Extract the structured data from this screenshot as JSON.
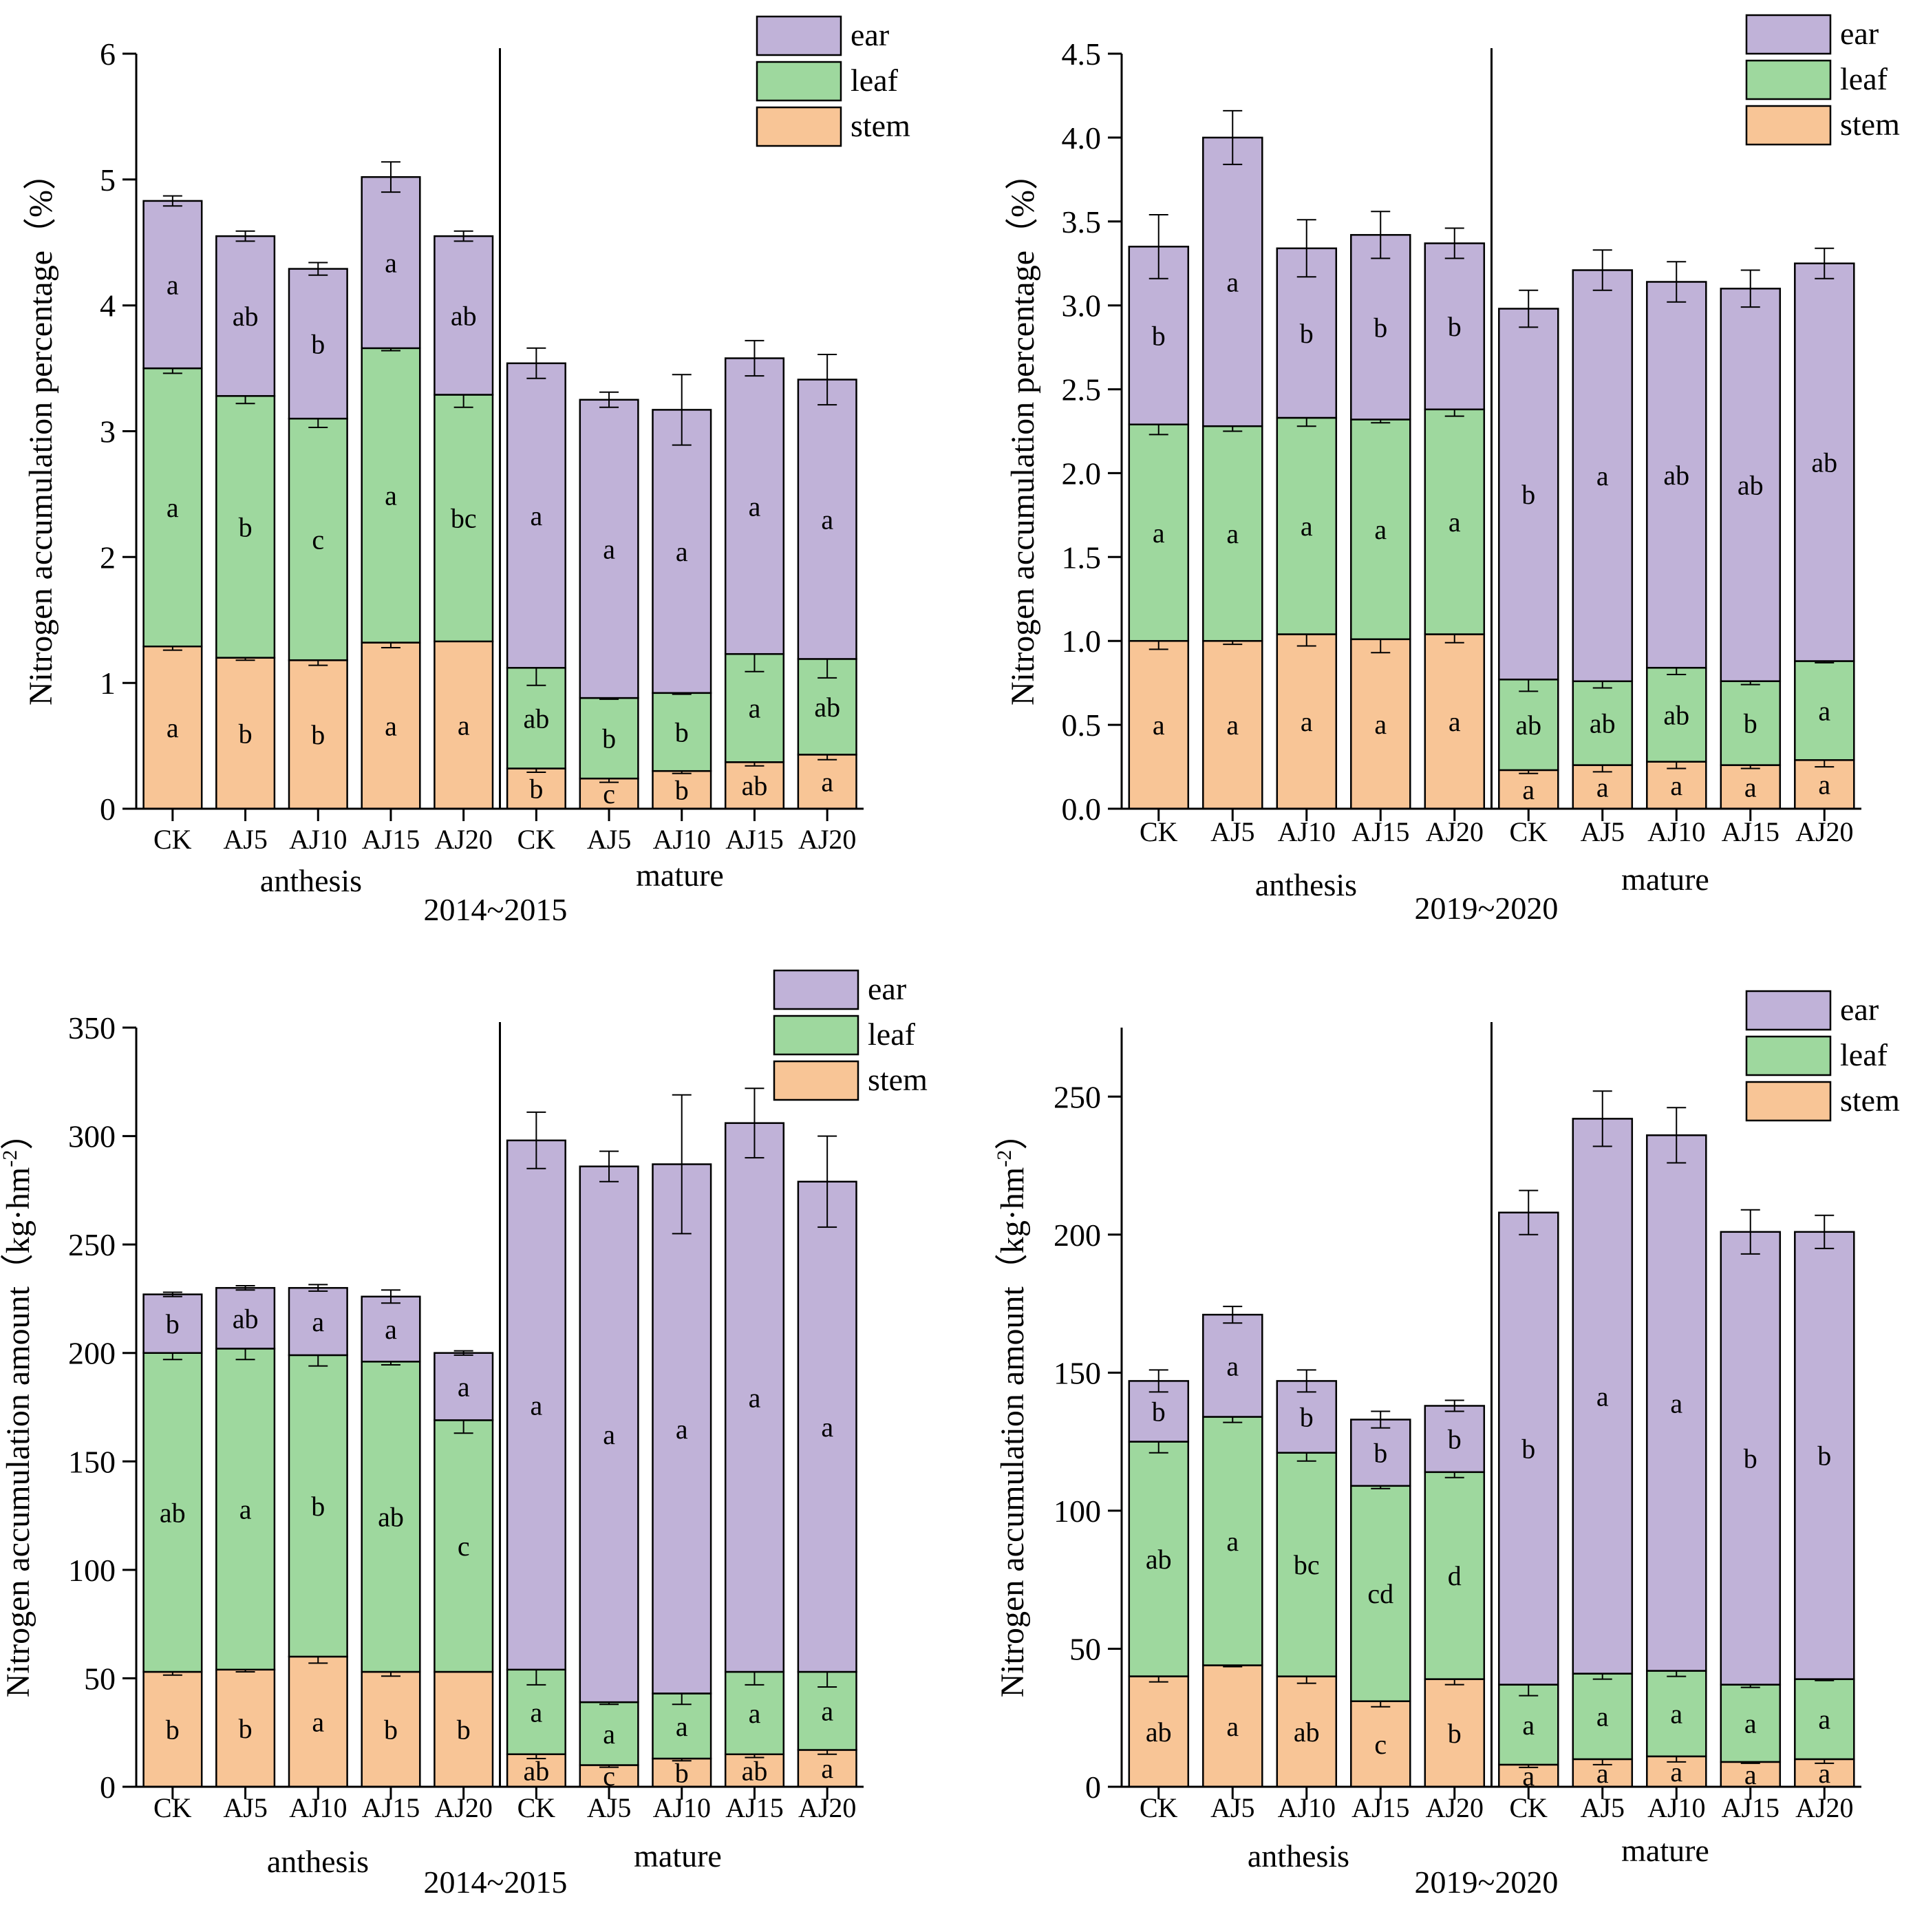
{
  "colors": {
    "ear": "#C0B2D8",
    "leaf": "#9ED89E",
    "stem": "#F8C596",
    "axis": "#000000"
  },
  "chart_data": [
    {
      "type": "bar",
      "stacked": true,
      "title": "",
      "ylabel": "Nitrogen accumulation percentage（%）",
      "ylim": [
        0,
        6
      ],
      "yticks": [
        0,
        1,
        2,
        3,
        4,
        5,
        6
      ],
      "ytick_labels": [
        "0",
        "1",
        "2",
        "3",
        "4",
        "5",
        "6"
      ],
      "categories": [
        "CK",
        "AJ5",
        "AJ10",
        "AJ15",
        "AJ20",
        "CK",
        "AJ5",
        "AJ10",
        "AJ15",
        "AJ20"
      ],
      "groups": [
        "anthesis",
        "mature"
      ],
      "period": "2014~2015",
      "legend": [
        "ear",
        "leaf",
        "stem"
      ],
      "legend_position": "top-right",
      "series": [
        {
          "name": "stem",
          "values": [
            1.29,
            1.2,
            1.18,
            1.32,
            1.33,
            0.32,
            0.24,
            0.3,
            0.37,
            0.43
          ],
          "err": [
            0.03,
            0.02,
            0.04,
            0.04,
            0.0,
            0.03,
            0.03,
            0.02,
            0.03,
            0.04
          ],
          "labels": [
            "a",
            "b",
            "b",
            "a",
            "a",
            "b",
            "c",
            "b",
            "ab",
            "a"
          ]
        },
        {
          "name": "leaf",
          "values": [
            2.21,
            2.08,
            1.92,
            2.34,
            1.96,
            0.8,
            0.64,
            0.62,
            0.86,
            0.76
          ],
          "err": [
            0.04,
            0.06,
            0.07,
            0.02,
            0.1,
            0.14,
            0.01,
            0.01,
            0.14,
            0.15
          ],
          "labels": [
            "a",
            "b",
            "c",
            "a",
            "bc",
            "ab",
            "b",
            "b",
            "a",
            "ab"
          ]
        },
        {
          "name": "ear",
          "values": [
            1.33,
            1.27,
            1.19,
            1.36,
            1.26,
            2.42,
            2.37,
            2.25,
            2.35,
            2.22
          ],
          "err": [
            0.04,
            0.04,
            0.05,
            0.12,
            0.04,
            0.12,
            0.06,
            0.28,
            0.14,
            0.2
          ],
          "labels": [
            "a",
            "ab",
            "b",
            "a",
            "ab",
            "a",
            "a",
            "a",
            "a",
            "a"
          ]
        }
      ]
    },
    {
      "type": "bar",
      "stacked": true,
      "title": "",
      "ylabel": "Nitrogen accumulation percentage（%）",
      "ylim": [
        0,
        4.5
      ],
      "yticks": [
        0,
        0.5,
        1.0,
        1.5,
        2.0,
        2.5,
        3.0,
        3.5,
        4.0,
        4.5
      ],
      "ytick_labels": [
        "0.0",
        "0.5",
        "1.0",
        "1.5",
        "2.0",
        "2.5",
        "3.0",
        "3.5",
        "4.0",
        "4.5"
      ],
      "categories": [
        "CK",
        "AJ5",
        "AJ10",
        "AJ15",
        "AJ20",
        "CK",
        "AJ5",
        "AJ10",
        "AJ15",
        "AJ20"
      ],
      "groups": [
        "anthesis",
        "mature"
      ],
      "period": "2019~2020",
      "legend": [
        "ear",
        "leaf",
        "stem"
      ],
      "legend_position": "top-right",
      "series": [
        {
          "name": "stem",
          "values": [
            1.0,
            1.0,
            1.04,
            1.01,
            1.04,
            0.23,
            0.26,
            0.28,
            0.26,
            0.29
          ],
          "err": [
            0.05,
            0.02,
            0.07,
            0.08,
            0.05,
            0.02,
            0.04,
            0.04,
            0.02,
            0.04
          ],
          "labels": [
            "a",
            "a",
            "a",
            "a",
            "a",
            "a",
            "a",
            "a",
            "a",
            "a"
          ]
        },
        {
          "name": "leaf",
          "values": [
            1.29,
            1.28,
            1.29,
            1.31,
            1.34,
            0.54,
            0.5,
            0.56,
            0.5,
            0.59
          ],
          "err": [
            0.06,
            0.03,
            0.05,
            0.02,
            0.04,
            0.07,
            0.04,
            0.04,
            0.02,
            0.01
          ],
          "labels": [
            "a",
            "a",
            "a",
            "a",
            "a",
            "ab",
            "ab",
            "ab",
            "b",
            "a"
          ]
        },
        {
          "name": "ear",
          "values": [
            1.06,
            1.72,
            1.01,
            1.1,
            0.99,
            2.21,
            2.45,
            2.3,
            2.34,
            2.37
          ],
          "err": [
            0.19,
            0.16,
            0.17,
            0.14,
            0.09,
            0.11,
            0.12,
            0.12,
            0.11,
            0.09
          ],
          "labels": [
            "b",
            "a",
            "b",
            "b",
            "b",
            "b",
            "a",
            "ab",
            "ab",
            "ab"
          ]
        }
      ]
    },
    {
      "type": "bar",
      "stacked": true,
      "title": "",
      "ylabel": "Nitrogen accumulation amount（kg·hm",
      "ylabel_sup": "-2",
      "ylabel_close": "）",
      "ylim": [
        0,
        350
      ],
      "yticks": [
        0,
        50,
        100,
        150,
        200,
        250,
        300,
        350
      ],
      "ytick_labels": [
        "0",
        "50",
        "100",
        "150",
        "200",
        "250",
        "300",
        "350"
      ],
      "categories": [
        "CK",
        "AJ5",
        "AJ10",
        "AJ15",
        "AJ20",
        "CK",
        "AJ5",
        "AJ10",
        "AJ15",
        "AJ20"
      ],
      "groups": [
        "anthesis",
        "mature"
      ],
      "period": "2014~2015",
      "legend": [
        "ear",
        "leaf",
        "stem"
      ],
      "legend_position": "top-right",
      "series": [
        {
          "name": "stem",
          "values": [
            53,
            54,
            60,
            53,
            53,
            15,
            10,
            13,
            15,
            17
          ],
          "err": [
            1.5,
            1.0,
            3.0,
            2.0,
            0,
            2.0,
            1.0,
            1.0,
            1.5,
            2.0
          ],
          "labels": [
            "b",
            "b",
            "a",
            "b",
            "b",
            "ab",
            "c",
            "b",
            "ab",
            "a"
          ]
        },
        {
          "name": "leaf",
          "values": [
            147,
            148,
            139,
            143,
            116,
            39,
            29,
            30,
            38,
            36
          ],
          "err": [
            3,
            5,
            5,
            1.5,
            6,
            7,
            1,
            5,
            6,
            7
          ],
          "labels": [
            "ab",
            "a",
            "b",
            "ab",
            "c",
            "a",
            "a",
            "a",
            "a",
            "a"
          ]
        },
        {
          "name": "ear",
          "values": [
            27,
            28,
            31,
            30,
            31,
            244,
            247,
            244,
            253,
            226
          ],
          "err": [
            1,
            1,
            1.5,
            3,
            1,
            13,
            7,
            32,
            16,
            21
          ],
          "labels": [
            "b",
            "ab",
            "a",
            "a",
            "a",
            "a",
            "a",
            "a",
            "a",
            "a"
          ]
        }
      ]
    },
    {
      "type": "bar",
      "stacked": true,
      "title": "",
      "ylabel": "Nitrogen accumulation amount（kg·hm",
      "ylabel_sup": "-2",
      "ylabel_close": "）",
      "ylim": [
        0,
        275
      ],
      "yticks": [
        0,
        50,
        100,
        150,
        200,
        250
      ],
      "ytick_labels": [
        "0",
        "50",
        "100",
        "150",
        "200",
        "250"
      ],
      "categories": [
        "CK",
        "AJ5",
        "AJ10",
        "AJ15",
        "AJ20",
        "CK",
        "AJ5",
        "AJ10",
        "AJ15",
        "AJ20"
      ],
      "groups": [
        "anthesis",
        "mature"
      ],
      "period": "2019~2020",
      "legend": [
        "ear",
        "leaf",
        "stem"
      ],
      "legend_position": "top-right",
      "series": [
        {
          "name": "stem",
          "values": [
            40,
            44,
            40,
            31,
            39,
            8,
            10,
            11,
            9,
            10
          ],
          "err": [
            2,
            0.5,
            2.5,
            2,
            2,
            1,
            2,
            2,
            0.5,
            1.5
          ],
          "labels": [
            "ab",
            "a",
            "ab",
            "c",
            "b",
            "a",
            "a",
            "a",
            "a",
            "a"
          ]
        },
        {
          "name": "leaf",
          "values": [
            85,
            90,
            81,
            78,
            75,
            29,
            31,
            31,
            28,
            29
          ],
          "err": [
            4,
            2,
            3,
            1,
            2,
            4,
            2,
            2,
            1,
            0.5
          ],
          "labels": [
            "ab",
            "a",
            "bc",
            "cd",
            "d",
            "a",
            "a",
            "a",
            "a",
            "a"
          ]
        },
        {
          "name": "ear",
          "values": [
            22,
            37,
            26,
            24,
            24,
            171,
            201,
            194,
            164,
            162
          ],
          "err": [
            4,
            3,
            4,
            3,
            2,
            8,
            10,
            10,
            8,
            6
          ],
          "labels": [
            "b",
            "a",
            "b",
            "b",
            "b",
            "b",
            "a",
            "a",
            "b",
            "b"
          ]
        }
      ]
    }
  ]
}
